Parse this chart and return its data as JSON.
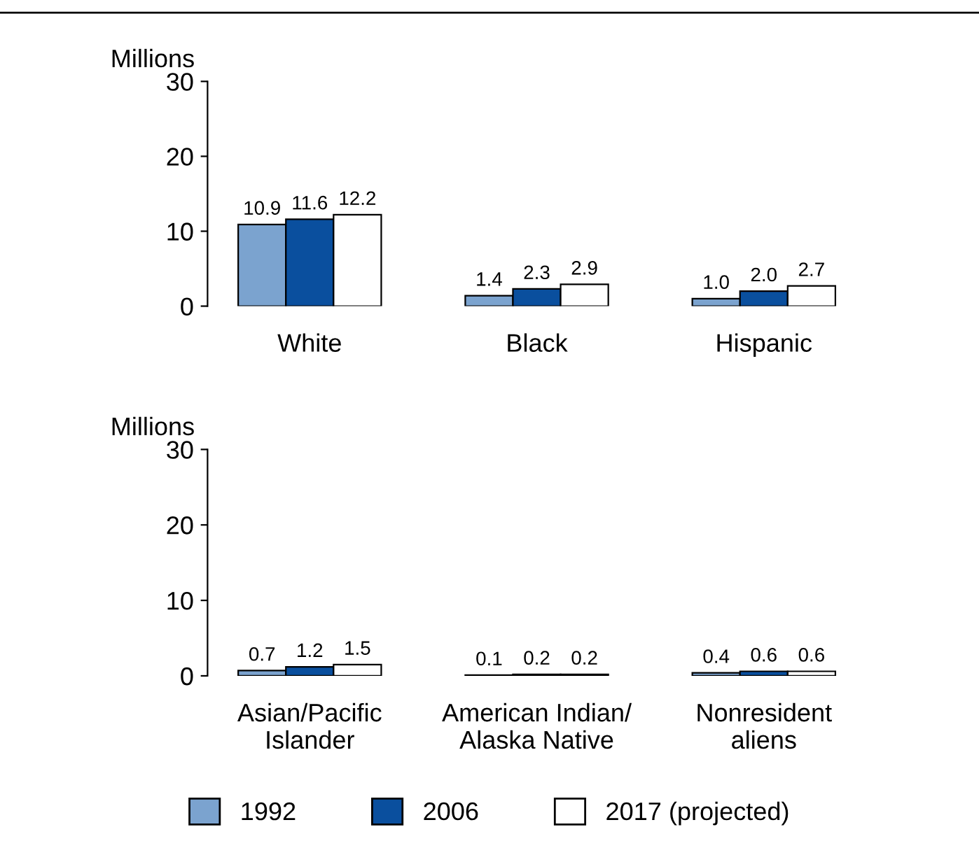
{
  "chart_data": [
    {
      "type": "bar",
      "ylabel": "Millions",
      "categories": [
        "White",
        "Black",
        "Hispanic"
      ],
      "ylim": [
        0,
        30
      ],
      "yticks": [
        0,
        10,
        20,
        30
      ],
      "grid": false,
      "legend": false,
      "series": [
        {
          "color": "#7ba3cf",
          "values": [
            10.9,
            1.4,
            1.0
          ],
          "value_labels": [
            "10.9",
            "1.4",
            "1.0"
          ]
        },
        {
          "color": "#0a4f9e",
          "values": [
            11.6,
            2.3,
            2.0
          ],
          "value_labels": [
            "11.6",
            "2.3",
            "2.0"
          ]
        },
        {
          "color": "#ffffff",
          "values": [
            12.2,
            2.9,
            2.7
          ],
          "value_labels": [
            "12.2",
            "2.9",
            "2.7"
          ]
        }
      ]
    },
    {
      "type": "bar",
      "ylabel": "Millions",
      "categories": [
        "Asian/Pacific\nIslander",
        "American Indian/\nAlaska Native",
        "Nonresident\naliens"
      ],
      "ylim": [
        0,
        30
      ],
      "yticks": [
        0,
        10,
        20,
        30
      ],
      "grid": false,
      "legend": "bottom",
      "series": [
        {
          "name": "1992",
          "color": "#7ba3cf",
          "values": [
            0.7,
            0.1,
            0.4
          ],
          "value_labels": [
            "0.7",
            "0.1",
            "0.4"
          ]
        },
        {
          "name": "2006",
          "color": "#0a4f9e",
          "values": [
            1.2,
            0.2,
            0.6
          ],
          "value_labels": [
            "1.2",
            "0.2",
            "0.6"
          ]
        },
        {
          "name": "2017 (projected)",
          "color": "#ffffff",
          "values": [
            1.5,
            0.2,
            0.6
          ],
          "value_labels": [
            "1.5",
            "0.2",
            "0.6"
          ]
        }
      ]
    }
  ]
}
